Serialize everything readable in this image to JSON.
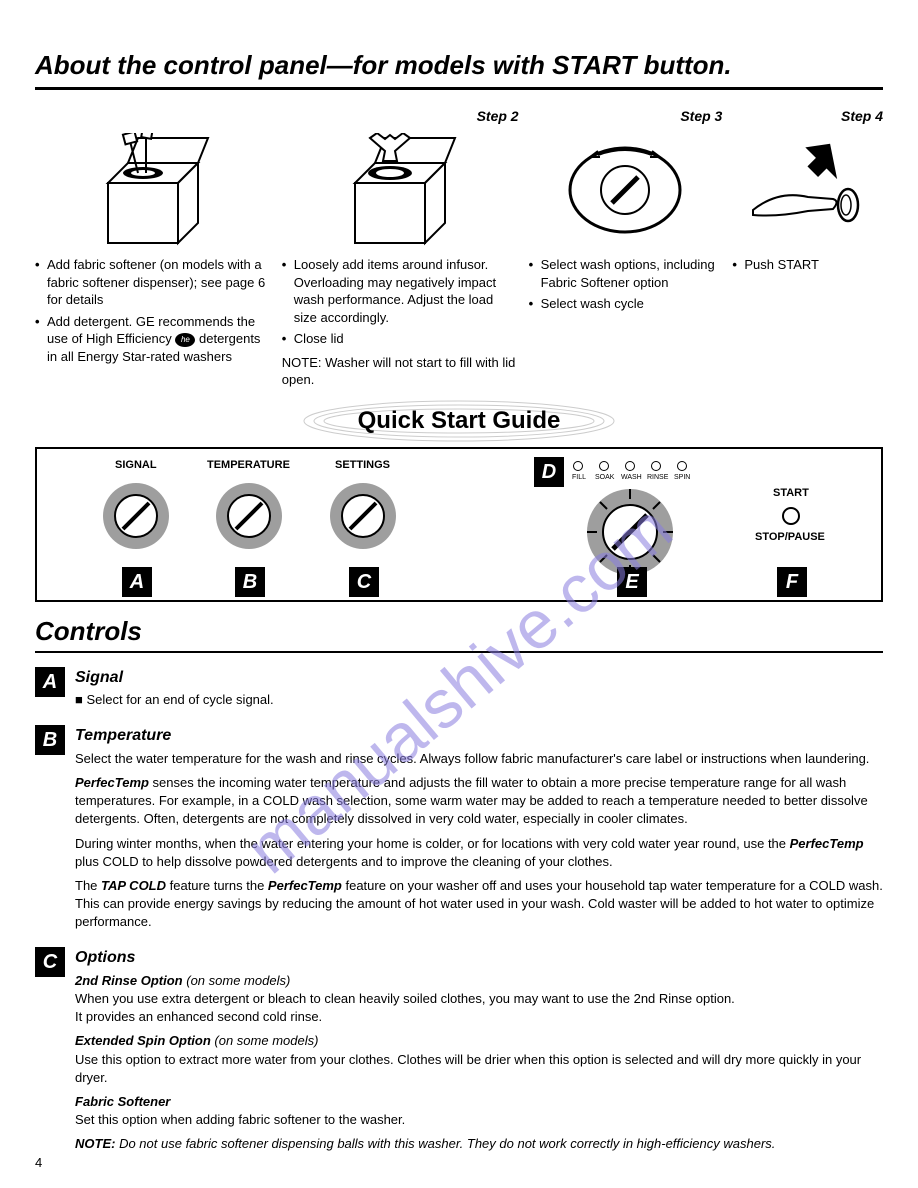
{
  "page": {
    "title": "About the control panel—for models with START button.",
    "quick_start": "Quick Start Guide",
    "controls_heading": "Controls",
    "page_number": "4",
    "watermark": "manualshive.com"
  },
  "colors": {
    "text": "#000000",
    "bg": "#ffffff",
    "watermark": "#8a7ee0",
    "knob_texture": "#9e9e9e",
    "knob_face": "#ffffff"
  },
  "steps": [
    {
      "label": "",
      "bullets": [
        "Add fabric softener (on models with a fabric softener dispenser); see page 6 for details",
        "Add detergent. GE recommends the use of High Efficiency __HE__ detergents in all Energy Star-rated washers"
      ],
      "note": ""
    },
    {
      "label": "Step 2",
      "bullets": [
        "Loosely add items around infusor. Overloading may negatively impact wash performance. Adjust the load size accordingly.",
        "Close lid"
      ],
      "note": "NOTE: Washer will not start to fill with lid open."
    },
    {
      "label": "Step 3",
      "bullets": [
        "Select  wash options, including Fabric Softener option",
        "Select wash cycle"
      ],
      "note": ""
    },
    {
      "label": "Step 4",
      "bullets": [
        "Push START"
      ],
      "note": ""
    }
  ],
  "panel": {
    "border_color": "#000000",
    "labels": {
      "signal": "SIGNAL",
      "temperature": "TEMPERATURE",
      "settings": "SETTINGS",
      "start": "START",
      "stop": "STOP/PAUSE"
    },
    "letters": {
      "A": "A",
      "B": "B",
      "C": "C",
      "D": "D",
      "E": "E",
      "F": "F"
    },
    "indicators": [
      "FILL",
      "SOAK",
      "WASH",
      "RINSE",
      "SPIN"
    ],
    "knob_positions": {
      "A": 95,
      "B": 208,
      "C": 322,
      "E": 588,
      "F_btn": 750
    },
    "letter_positions": {
      "A": 95,
      "B": 208,
      "C": 322,
      "D": 505,
      "E": 600,
      "F": 750
    }
  },
  "controls": [
    {
      "letter": "A",
      "heading": "Signal",
      "paras": [
        {
          "type": "bullet",
          "text": "Select for an end of cycle signal."
        }
      ]
    },
    {
      "letter": "B",
      "heading": "Temperature",
      "paras": [
        {
          "type": "plain",
          "text": "Select the water temperature for the wash and rinse cycles. Always follow fabric manufacturer's care label or instructions when laundering."
        },
        {
          "type": "plain",
          "html": "<b><i>PerfecTemp</i></b> senses the incoming water temperature and adjusts the fill water to obtain a more precise temperature range for all wash temperatures. For example, in a COLD wash selection, some warm water may be added to reach a temperature needed to better dissolve detergents. Often, detergents are not completely dissolved in very cold water, especially in cooler climates."
        },
        {
          "type": "plain",
          "html": "During winter months, when the water entering your home is colder, or for locations with very cold water year round, use the <b><i>PerfecTemp</i></b> plus COLD to help dissolve powdered detergents and to improve the cleaning of your clothes."
        },
        {
          "type": "plain",
          "html": "The <b><i>TAP COLD</i></b> feature turns the <b><i>PerfecTemp</i></b> feature on your washer off and uses your household tap water temperature for a COLD wash. This can provide energy savings by reducing the amount of hot water used in your wash. Cold waster will be added to hot water to optimize performance."
        }
      ]
    },
    {
      "letter": "C",
      "heading": "Options",
      "paras": [
        {
          "type": "sub",
          "title": "2nd Rinse Option",
          "note": "(on some models)",
          "text": "When you use extra detergent or bleach to clean heavily soiled clothes, you may want to use the 2nd Rinse option.\nIt provides an enhanced second cold rinse."
        },
        {
          "type": "sub",
          "title": "Extended Spin Option",
          "note": "(on some models)",
          "text": "Use this option to extract more water from your clothes. Clothes will be drier when this option is selected and will dry more quickly in your dryer."
        },
        {
          "type": "sub",
          "title": "Fabric Softener",
          "note": "",
          "text": "Set this option when adding fabric softener to the washer."
        },
        {
          "type": "note",
          "html": "<b><i>NOTE:</i></b> <i>Do not use fabric softener dispensing balls with this washer. They do not work correctly in high-efficiency washers.</i>"
        }
      ]
    }
  ]
}
